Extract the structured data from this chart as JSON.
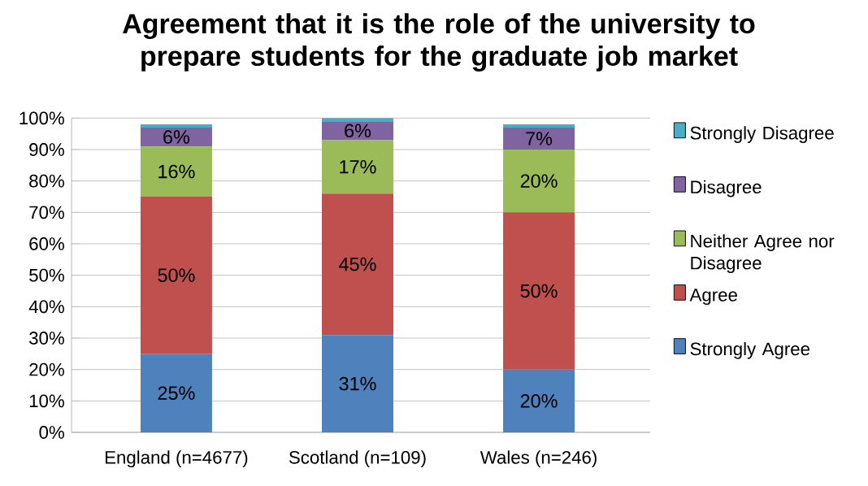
{
  "chart_data": {
    "type": "bar",
    "stacked": true,
    "title": "Agreement that it is the role of the university to prepare students for the graduate job market",
    "categories": [
      "England (n=4677)",
      "Scotland (n=109)",
      "Wales (n=246)"
    ],
    "series": [
      {
        "name": "Strongly Agree",
        "color": "#4f81bd",
        "values": [
          25,
          31,
          20
        ],
        "value_labels": [
          "25%",
          "31%",
          "20%"
        ]
      },
      {
        "name": "Agree",
        "color": "#c0504d",
        "values": [
          50,
          45,
          50
        ],
        "value_labels": [
          "50%",
          "45%",
          "50%"
        ]
      },
      {
        "name": "Neither Agree nor Disagree",
        "color": "#9bbb59",
        "values": [
          16,
          17,
          20
        ],
        "value_labels": [
          "16%",
          "17%",
          "20%"
        ]
      },
      {
        "name": "Disagree",
        "color": "#8064a2",
        "values": [
          6,
          6,
          7
        ],
        "value_labels": [
          "6%",
          "6%",
          "7%"
        ]
      },
      {
        "name": "Strongly Disagree",
        "color": "#4bacc6",
        "values": [
          1,
          1,
          1
        ],
        "value_labels": [
          null,
          null,
          null
        ]
      }
    ],
    "ylim": [
      0,
      100
    ],
    "yticks": [
      {
        "value": 0,
        "label": "0%"
      },
      {
        "value": 10,
        "label": "10%"
      },
      {
        "value": 20,
        "label": "20%"
      },
      {
        "value": 30,
        "label": "30%"
      },
      {
        "value": 40,
        "label": "40%"
      },
      {
        "value": 50,
        "label": "50%"
      },
      {
        "value": 60,
        "label": "60%"
      },
      {
        "value": 70,
        "label": "70%"
      },
      {
        "value": 80,
        "label": "80%"
      },
      {
        "value": 90,
        "label": "90%"
      },
      {
        "value": 100,
        "label": "100%"
      }
    ],
    "grid": "y",
    "legend": "right"
  }
}
